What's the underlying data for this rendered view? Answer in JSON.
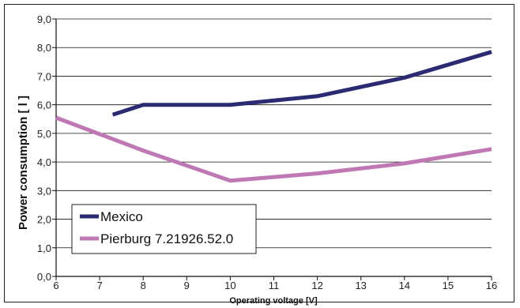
{
  "chart_data": {
    "type": "line",
    "xlabel": "Operating voltage  [V]",
    "ylabel": "Power consumption [ l ]",
    "xlim": [
      6,
      16
    ],
    "ylim": [
      0,
      9
    ],
    "x_ticks": [
      "6",
      "7",
      "8",
      "9",
      "10",
      "11",
      "12",
      "13",
      "14",
      "15",
      "16"
    ],
    "y_ticks": [
      "0,0",
      "1,0",
      "2,0",
      "3,0",
      "4,0",
      "5,0",
      "6,0",
      "7,0",
      "8,0",
      "9,0"
    ],
    "grid": "horizontal",
    "legend_position": "bottom-left",
    "series": [
      {
        "name": "Mexico",
        "color": "#2b2a72",
        "x": [
          7.3,
          8,
          10,
          12,
          14,
          16
        ],
        "y": [
          5.65,
          6.0,
          6.0,
          6.3,
          6.95,
          7.85
        ]
      },
      {
        "name": "Pierburg 7.21926.52.0",
        "color": "#c078b4",
        "x": [
          6,
          8,
          10,
          12,
          14,
          16
        ],
        "y": [
          5.55,
          4.4,
          3.35,
          3.6,
          3.95,
          4.45
        ]
      }
    ]
  }
}
